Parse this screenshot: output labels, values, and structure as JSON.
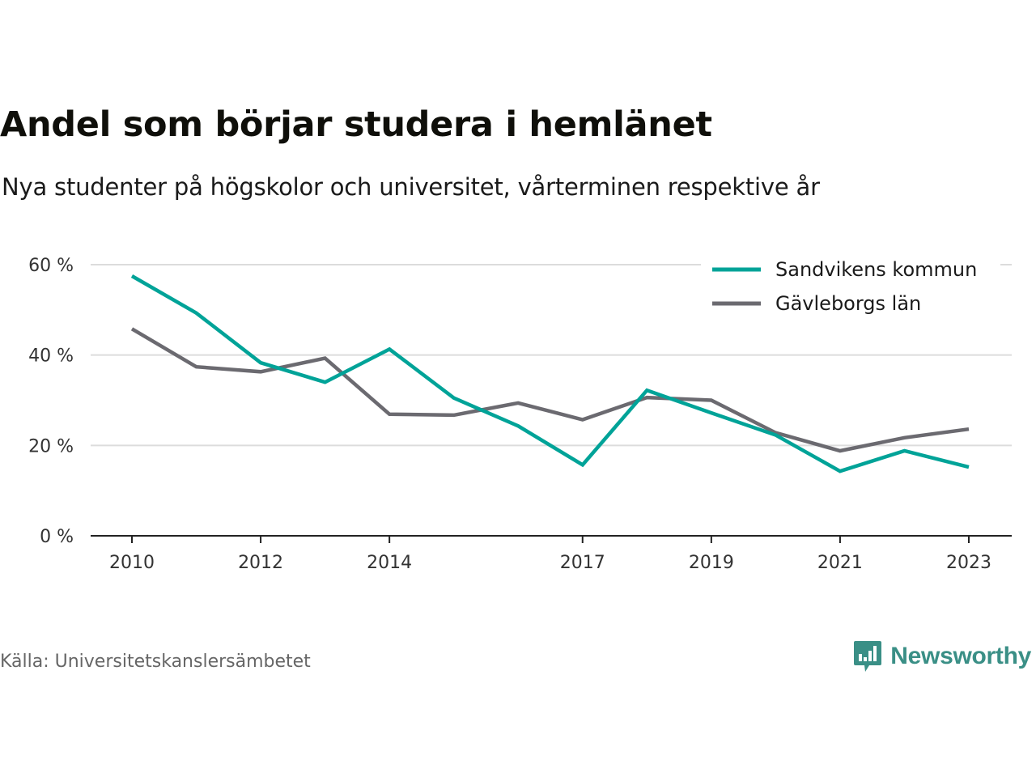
{
  "title": "Andel som börjar studera i hemlänet",
  "subtitle": "Nya studenter på högskolor och universitet, vårterminen respektive år",
  "source": "Källa: Universitetskanslersämbetet",
  "brand": {
    "name": "Newsworthy",
    "color": "#3a8f86"
  },
  "chart_data": {
    "type": "line",
    "x": [
      2010,
      2011,
      2012,
      2013,
      2014,
      2015,
      2016,
      2017,
      2018,
      2019,
      2020,
      2021,
      2022,
      2023
    ],
    "x_tick_labels": [
      "2010",
      "2012",
      "2014",
      "2017",
      "2019",
      "2021",
      "2023"
    ],
    "y_ticks": [
      0,
      20,
      40,
      60
    ],
    "y_tick_labels": [
      "0 %",
      "20 %",
      "40 %",
      "60 %"
    ],
    "ylim": [
      0,
      60
    ],
    "grid": true,
    "legend_position": "top-right",
    "series": [
      {
        "name": "Sandvikens kommun",
        "color": "#00a398",
        "values": [
          57.5,
          49.3,
          38.3,
          34.0,
          41.3,
          30.5,
          24.3,
          15.7,
          32.2,
          27.2,
          22.3,
          14.3,
          18.8,
          15.2
        ]
      },
      {
        "name": "Gävleborgs län",
        "color": "#6b6a70",
        "values": [
          45.8,
          37.4,
          36.3,
          39.3,
          26.9,
          26.7,
          29.4,
          25.7,
          30.6,
          30.0,
          22.8,
          18.8,
          21.7,
          23.6
        ]
      }
    ]
  }
}
